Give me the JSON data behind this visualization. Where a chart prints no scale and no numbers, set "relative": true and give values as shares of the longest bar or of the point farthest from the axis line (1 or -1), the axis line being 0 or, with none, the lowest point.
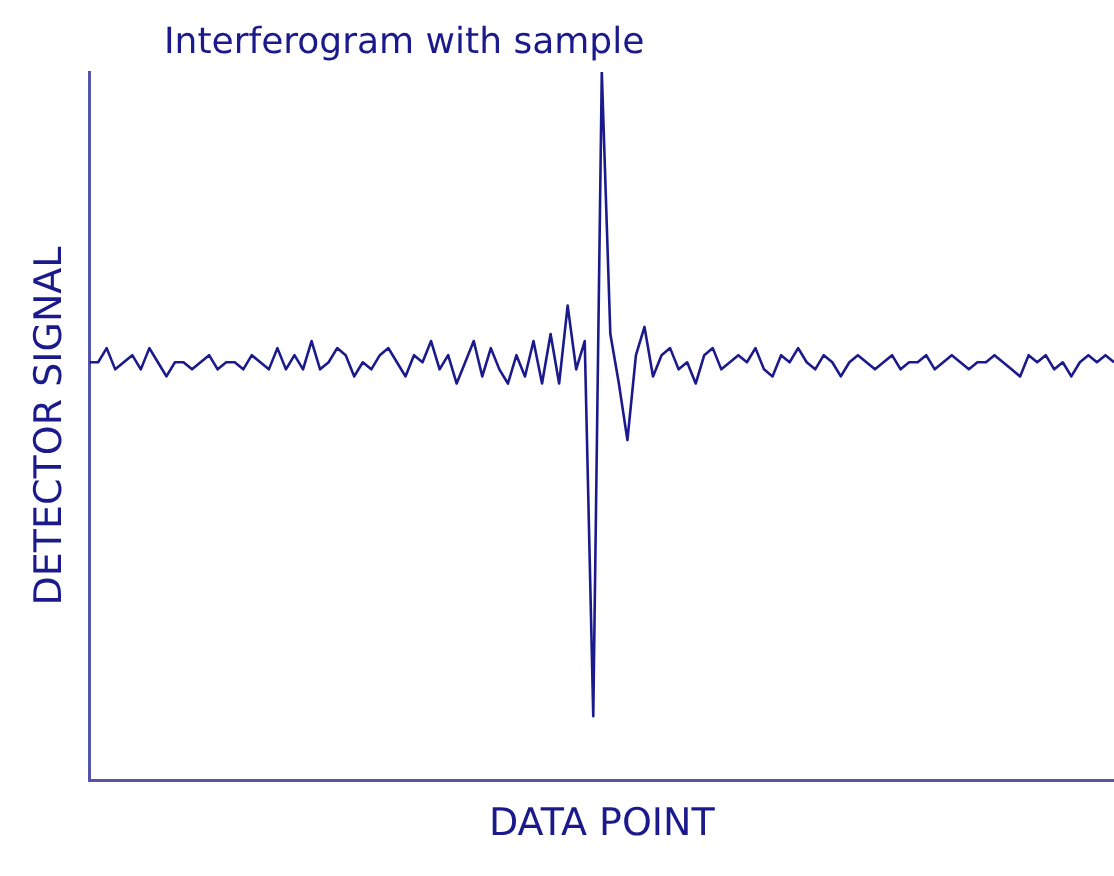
{
  "chart_data": {
    "type": "line",
    "title": "Interferogram with sample",
    "xlabel": "DATA POINT",
    "ylabel": "DETECTOR SIGNAL",
    "relative": true,
    "grid": false,
    "legend": false,
    "marker": "none",
    "line_style": "solid",
    "categories": [
      null,
      null,
      null,
      null,
      null,
      null,
      null,
      null,
      null,
      null,
      null,
      null,
      null,
      null,
      null,
      null,
      null,
      null,
      null,
      null,
      null,
      null,
      null,
      null,
      null,
      null,
      null,
      null,
      null,
      null,
      null,
      null,
      null,
      null,
      null,
      null,
      null,
      null,
      null,
      null,
      null,
      null,
      null,
      null,
      null,
      null,
      null,
      null,
      null,
      null,
      null,
      null,
      null,
      null,
      null,
      null,
      null,
      null,
      null,
      null,
      null,
      null,
      null,
      null,
      null,
      null,
      null,
      null,
      null,
      null,
      null,
      null,
      null,
      null,
      null,
      null,
      null,
      null,
      null,
      null,
      null,
      null,
      null,
      null,
      null,
      null,
      null,
      null,
      null,
      null,
      null,
      null,
      null,
      null,
      null,
      null,
      null,
      null,
      null,
      null,
      null,
      null,
      null,
      null,
      null,
      null,
      null,
      null,
      null,
      null,
      null,
      null,
      null,
      null,
      null,
      null,
      null,
      null,
      null,
      null,
      null
    ],
    "series": [
      {
        "color": "#1a1a8c",
        "values": [
          0.59,
          0.59,
          0.61,
          0.58,
          0.59,
          0.6,
          0.58,
          0.61,
          0.59,
          0.57,
          0.59,
          0.59,
          0.58,
          0.59,
          0.6,
          0.58,
          0.59,
          0.59,
          0.58,
          0.6,
          0.59,
          0.58,
          0.61,
          0.58,
          0.6,
          0.58,
          0.62,
          0.58,
          0.59,
          0.61,
          0.6,
          0.57,
          0.59,
          0.58,
          0.6,
          0.61,
          0.59,
          0.57,
          0.6,
          0.59,
          0.62,
          0.58,
          0.6,
          0.56,
          0.59,
          0.62,
          0.57,
          0.61,
          0.58,
          0.56,
          0.6,
          0.57,
          0.62,
          0.56,
          0.63,
          0.56,
          0.67,
          0.58,
          0.62,
          0.09,
          1.0,
          0.63,
          0.56,
          0.48,
          0.6,
          0.64,
          0.57,
          0.6,
          0.61,
          0.58,
          0.59,
          0.56,
          0.6,
          0.61,
          0.58,
          0.59,
          0.6,
          0.59,
          0.61,
          0.58,
          0.57,
          0.6,
          0.59,
          0.61,
          0.59,
          0.58,
          0.6,
          0.59,
          0.57,
          0.59,
          0.6,
          0.59,
          0.58,
          0.59,
          0.6,
          0.58,
          0.59,
          0.59,
          0.6,
          0.58,
          0.59,
          0.6,
          0.59,
          0.58,
          0.59,
          0.59,
          0.6,
          0.59,
          0.58,
          0.57,
          0.6,
          0.59,
          0.6,
          0.58,
          0.59,
          0.57,
          0.59,
          0.6,
          0.59,
          0.6,
          0.59
        ]
      }
    ]
  }
}
